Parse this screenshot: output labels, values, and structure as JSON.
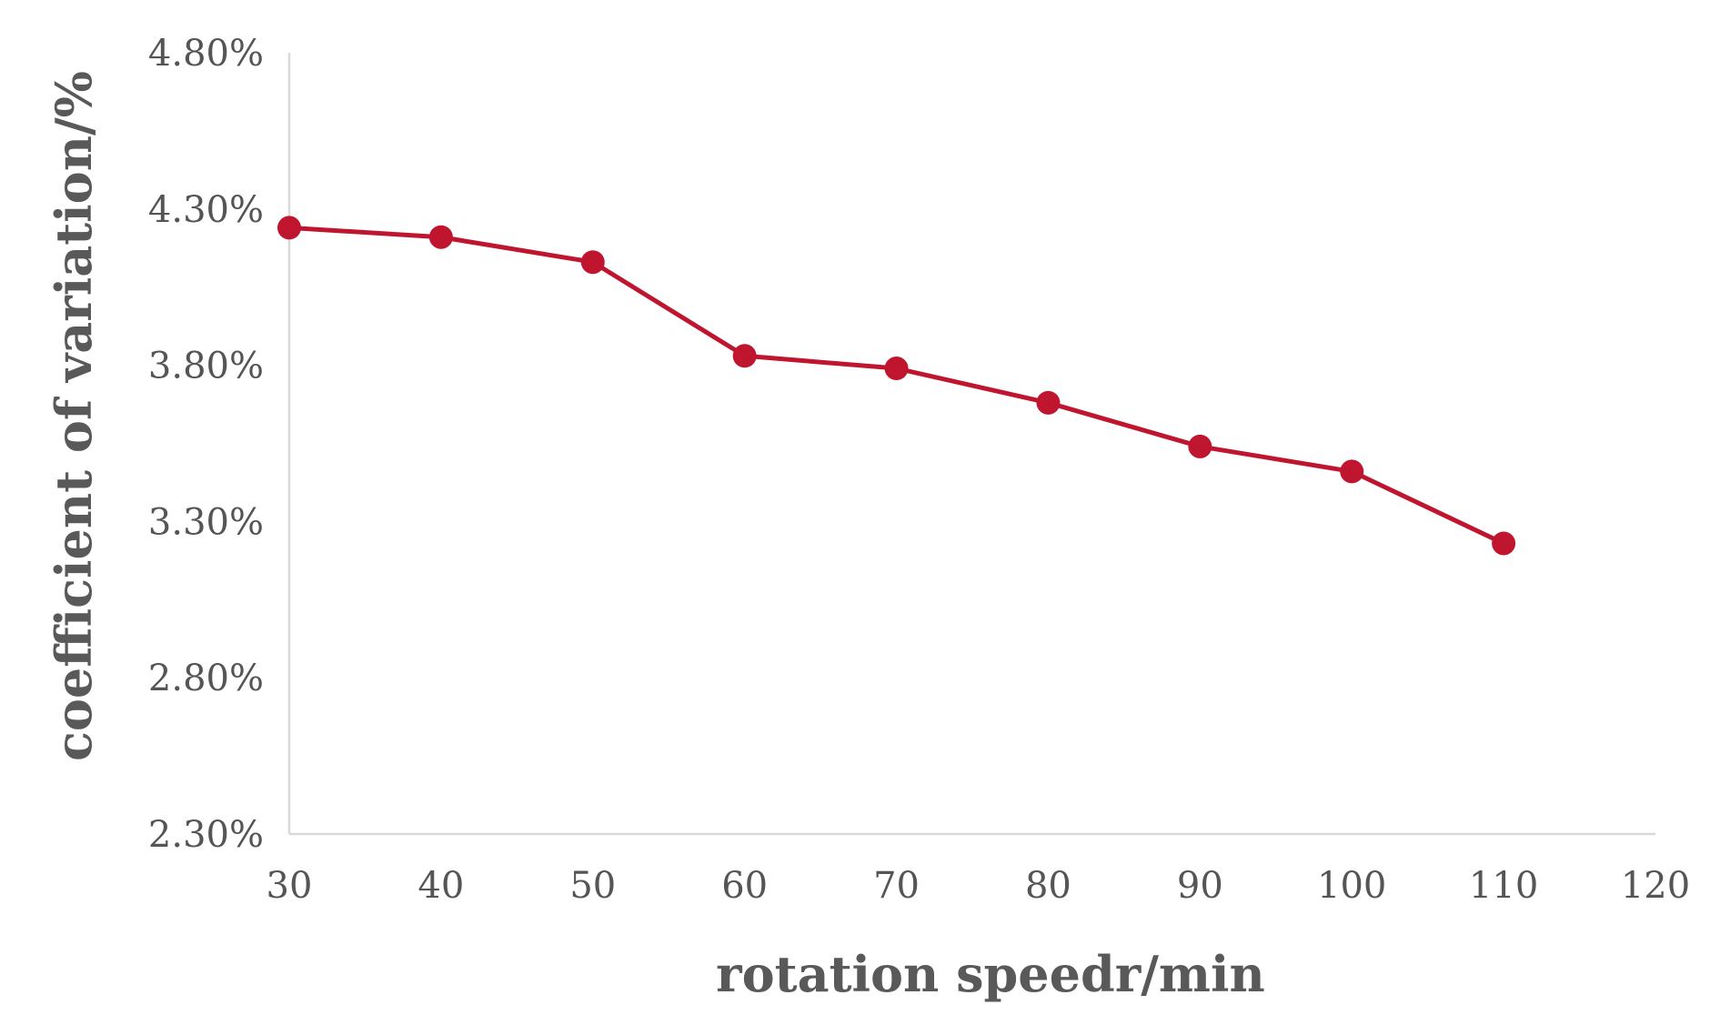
{
  "chart_data": {
    "type": "line",
    "title": "",
    "xlabel": "rotation speedr/min",
    "ylabel": "coefficient of variation/%",
    "x": [
      30,
      40,
      50,
      60,
      70,
      80,
      90,
      100,
      110
    ],
    "series": [
      {
        "values": [
          4.24,
          4.21,
          4.13,
          3.83,
          3.79,
          3.68,
          3.54,
          3.46,
          3.23
        ],
        "color": "#c0152f"
      }
    ],
    "xlim": [
      30,
      120
    ],
    "ylim": [
      2.3,
      4.8
    ],
    "x_ticks": [
      30,
      40,
      50,
      60,
      70,
      80,
      90,
      100,
      110,
      120
    ],
    "x_tick_labels": [
      "30",
      "40",
      "50",
      "60",
      "70",
      "80",
      "90",
      "100",
      "110",
      "120"
    ],
    "y_ticks": [
      2.3,
      2.8,
      3.3,
      3.8,
      4.3,
      4.8
    ],
    "y_tick_labels": [
      "2.30%",
      "2.80%",
      "3.30%",
      "3.80%",
      "4.30%",
      "4.80%"
    ],
    "grid": false,
    "legend": "none",
    "axis_color": "#d9d9d9"
  }
}
